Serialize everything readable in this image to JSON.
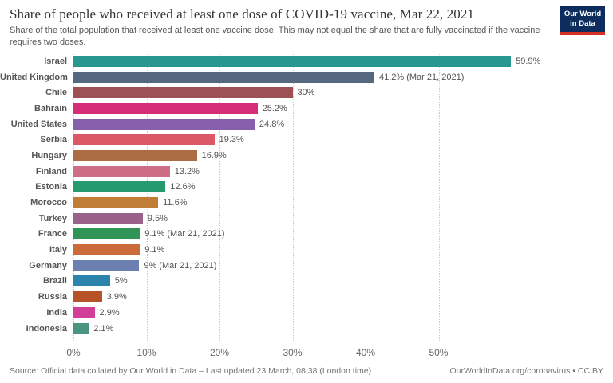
{
  "header": {
    "title": "Share of people who received at least one dose of COVID-19 vaccine, Mar 22, 2021",
    "subtitle": "Share of the total population that received at least one vaccine dose. This may not equal the share that are fully vaccinated if the vaccine requires two doses.",
    "logo": {
      "line1": "Our World",
      "line2": "in Data",
      "bg_color": "#0d2d5e",
      "accent_color": "#d73024"
    }
  },
  "chart_data": {
    "type": "bar",
    "orientation": "horizontal",
    "title": "Share of people who received at least one dose of COVID-19 vaccine, Mar 22, 2021",
    "categories": [
      "Israel",
      "United Kingdom",
      "Chile",
      "Bahrain",
      "United States",
      "Serbia",
      "Hungary",
      "Finland",
      "Estonia",
      "Morocco",
      "Turkey",
      "France",
      "Italy",
      "Germany",
      "Brazil",
      "Russia",
      "India",
      "Indonesia"
    ],
    "values": [
      59.9,
      41.2,
      30,
      25.2,
      24.8,
      19.3,
      16.9,
      13.2,
      12.6,
      11.6,
      9.5,
      9.1,
      9.1,
      9,
      5,
      3.9,
      2.9,
      2.1
    ],
    "value_labels": [
      "59.9%",
      "41.2% (Mar 21, 2021)",
      "30%",
      "25.2%",
      "24.8%",
      "19.3%",
      "16.9%",
      "13.2%",
      "12.6%",
      "11.6%",
      "9.5%",
      "9.1% (Mar 21, 2021)",
      "9.1%",
      "9% (Mar 21, 2021)",
      "5%",
      "3.9%",
      "2.9%",
      "2.1%"
    ],
    "bar_colors": [
      "#269890",
      "#566880",
      "#9d5056",
      "#d62d78",
      "#8660ad",
      "#dc5866",
      "#aa6d44",
      "#ce6e86",
      "#249b6f",
      "#c07d36",
      "#9b6289",
      "#2f9456",
      "#ca6b39",
      "#6b80b1",
      "#2a84ab",
      "#b65128",
      "#d33e96",
      "#4b9481"
    ],
    "xlabel": "",
    "ylabel": "",
    "x_ticks": [
      "0%",
      "10%",
      "20%",
      "30%",
      "40%",
      "50%"
    ],
    "x_tick_values": [
      0,
      10,
      20,
      30,
      40,
      50
    ],
    "xlim": [
      0,
      65.5
    ],
    "grid": "vertical dotted",
    "legend": "none"
  },
  "footer": {
    "source": "Source: Official data collated by Our World in Data – Last updated 23 March, 08:38 (London time)",
    "link": "OurWorldInData.org/coronavirus • CC BY"
  }
}
